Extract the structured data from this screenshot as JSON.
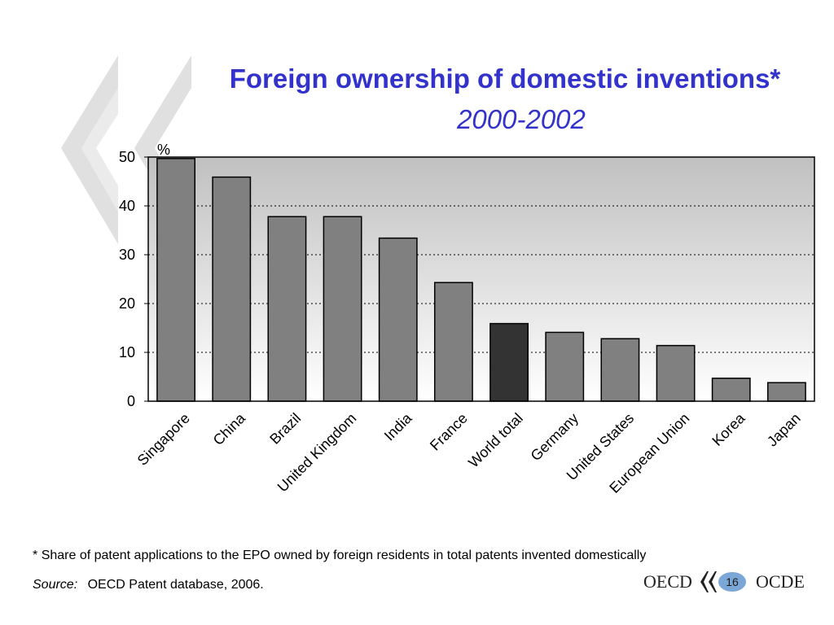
{
  "slide": {
    "footnote_star": "*",
    "footnote": "Share of patent applications to the EPO owned by foreign residents in total patents invented domestically",
    "source_label": "Source:",
    "source_text": "OECD Patent database, 2006.",
    "logo_left": "OECD",
    "logo_right": "OCDE",
    "page_number": "16"
  },
  "chart_data": {
    "type": "bar",
    "title": "Foreign ownership of domestic inventions*",
    "subtitle": "2000-2002",
    "ylabel": "%",
    "xlabel": "",
    "ylim": [
      0,
      50
    ],
    "yticks": [
      0,
      10,
      20,
      30,
      40,
      50
    ],
    "grid": "horizontal dotted",
    "categories": [
      "Singapore",
      "China",
      "Brazil",
      "United Kingdom",
      "India",
      "France",
      "World total",
      "Germany",
      "United States",
      "European Union",
      "Korea",
      "Japan"
    ],
    "values": [
      49.7,
      45.9,
      37.8,
      37.8,
      33.4,
      24.3,
      15.9,
      14.1,
      12.8,
      11.4,
      4.7,
      3.8
    ],
    "colors": {
      "bar": "#808080",
      "highlight_bar": "#333333",
      "title": "#3333cc",
      "plot_bg_top": "#c0c0c0",
      "plot_bg_bottom": "#ffffff"
    },
    "highlight_category": "World total"
  }
}
